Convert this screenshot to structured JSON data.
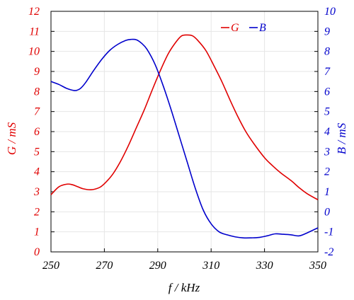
{
  "chart_data": {
    "type": "line",
    "xlabel": "f / kHz",
    "ylabel_left": "G / mS",
    "ylabel_right": "B / mS",
    "xlim": [
      250,
      350
    ],
    "ylim_left": [
      0,
      12
    ],
    "ylim_right": [
      -2,
      10
    ],
    "x_ticks": [
      "250",
      "270",
      "290",
      "310",
      "330",
      "350"
    ],
    "y_left_ticks": [
      "0",
      "1",
      "2",
      "3",
      "4",
      "5",
      "6",
      "7",
      "8",
      "9",
      "10",
      "11",
      "12"
    ],
    "y_right_ticks": [
      "-2",
      "-1",
      "0",
      "1",
      "2",
      "3",
      "4",
      "5",
      "6",
      "7",
      "8",
      "9",
      "10"
    ],
    "grid": true,
    "legend_position": "top-right",
    "colors": {
      "G": "#e00000",
      "B": "#0000cc"
    },
    "series": [
      {
        "name": "G",
        "axis": "left",
        "x": [
          250,
          253,
          256,
          258,
          260,
          262,
          265,
          268,
          270,
          273,
          276,
          279,
          282,
          285,
          288,
          291,
          294,
          297,
          299,
          301,
          303,
          305,
          308,
          311,
          314,
          317,
          320,
          323,
          326,
          330,
          333,
          336,
          340,
          343,
          346,
          350
        ],
        "values": [
          2.85,
          3.25,
          3.38,
          3.35,
          3.25,
          3.15,
          3.1,
          3.2,
          3.4,
          3.85,
          4.5,
          5.3,
          6.2,
          7.1,
          8.1,
          9.05,
          9.9,
          10.5,
          10.78,
          10.82,
          10.78,
          10.55,
          10.05,
          9.3,
          8.5,
          7.6,
          6.75,
          6.0,
          5.4,
          4.7,
          4.3,
          3.95,
          3.55,
          3.2,
          2.9,
          2.6
        ]
      },
      {
        "name": "B",
        "axis": "right",
        "x": [
          250,
          253,
          256,
          259,
          261,
          263,
          266,
          269,
          272,
          275,
          278,
          280,
          282,
          284,
          286,
          289,
          292,
          295,
          298,
          301,
          304,
          307,
          310,
          313,
          316,
          319,
          322,
          325,
          328,
          331,
          334,
          337,
          340,
          343,
          346,
          350
        ],
        "values": [
          6.5,
          6.35,
          6.15,
          6.05,
          6.15,
          6.45,
          7.05,
          7.6,
          8.05,
          8.35,
          8.55,
          8.6,
          8.58,
          8.4,
          8.1,
          7.35,
          6.3,
          5.1,
          3.8,
          2.5,
          1.2,
          0.1,
          -0.6,
          -1.0,
          -1.15,
          -1.25,
          -1.3,
          -1.3,
          -1.28,
          -1.2,
          -1.1,
          -1.12,
          -1.15,
          -1.2,
          -1.05,
          -0.8
        ]
      }
    ]
  }
}
